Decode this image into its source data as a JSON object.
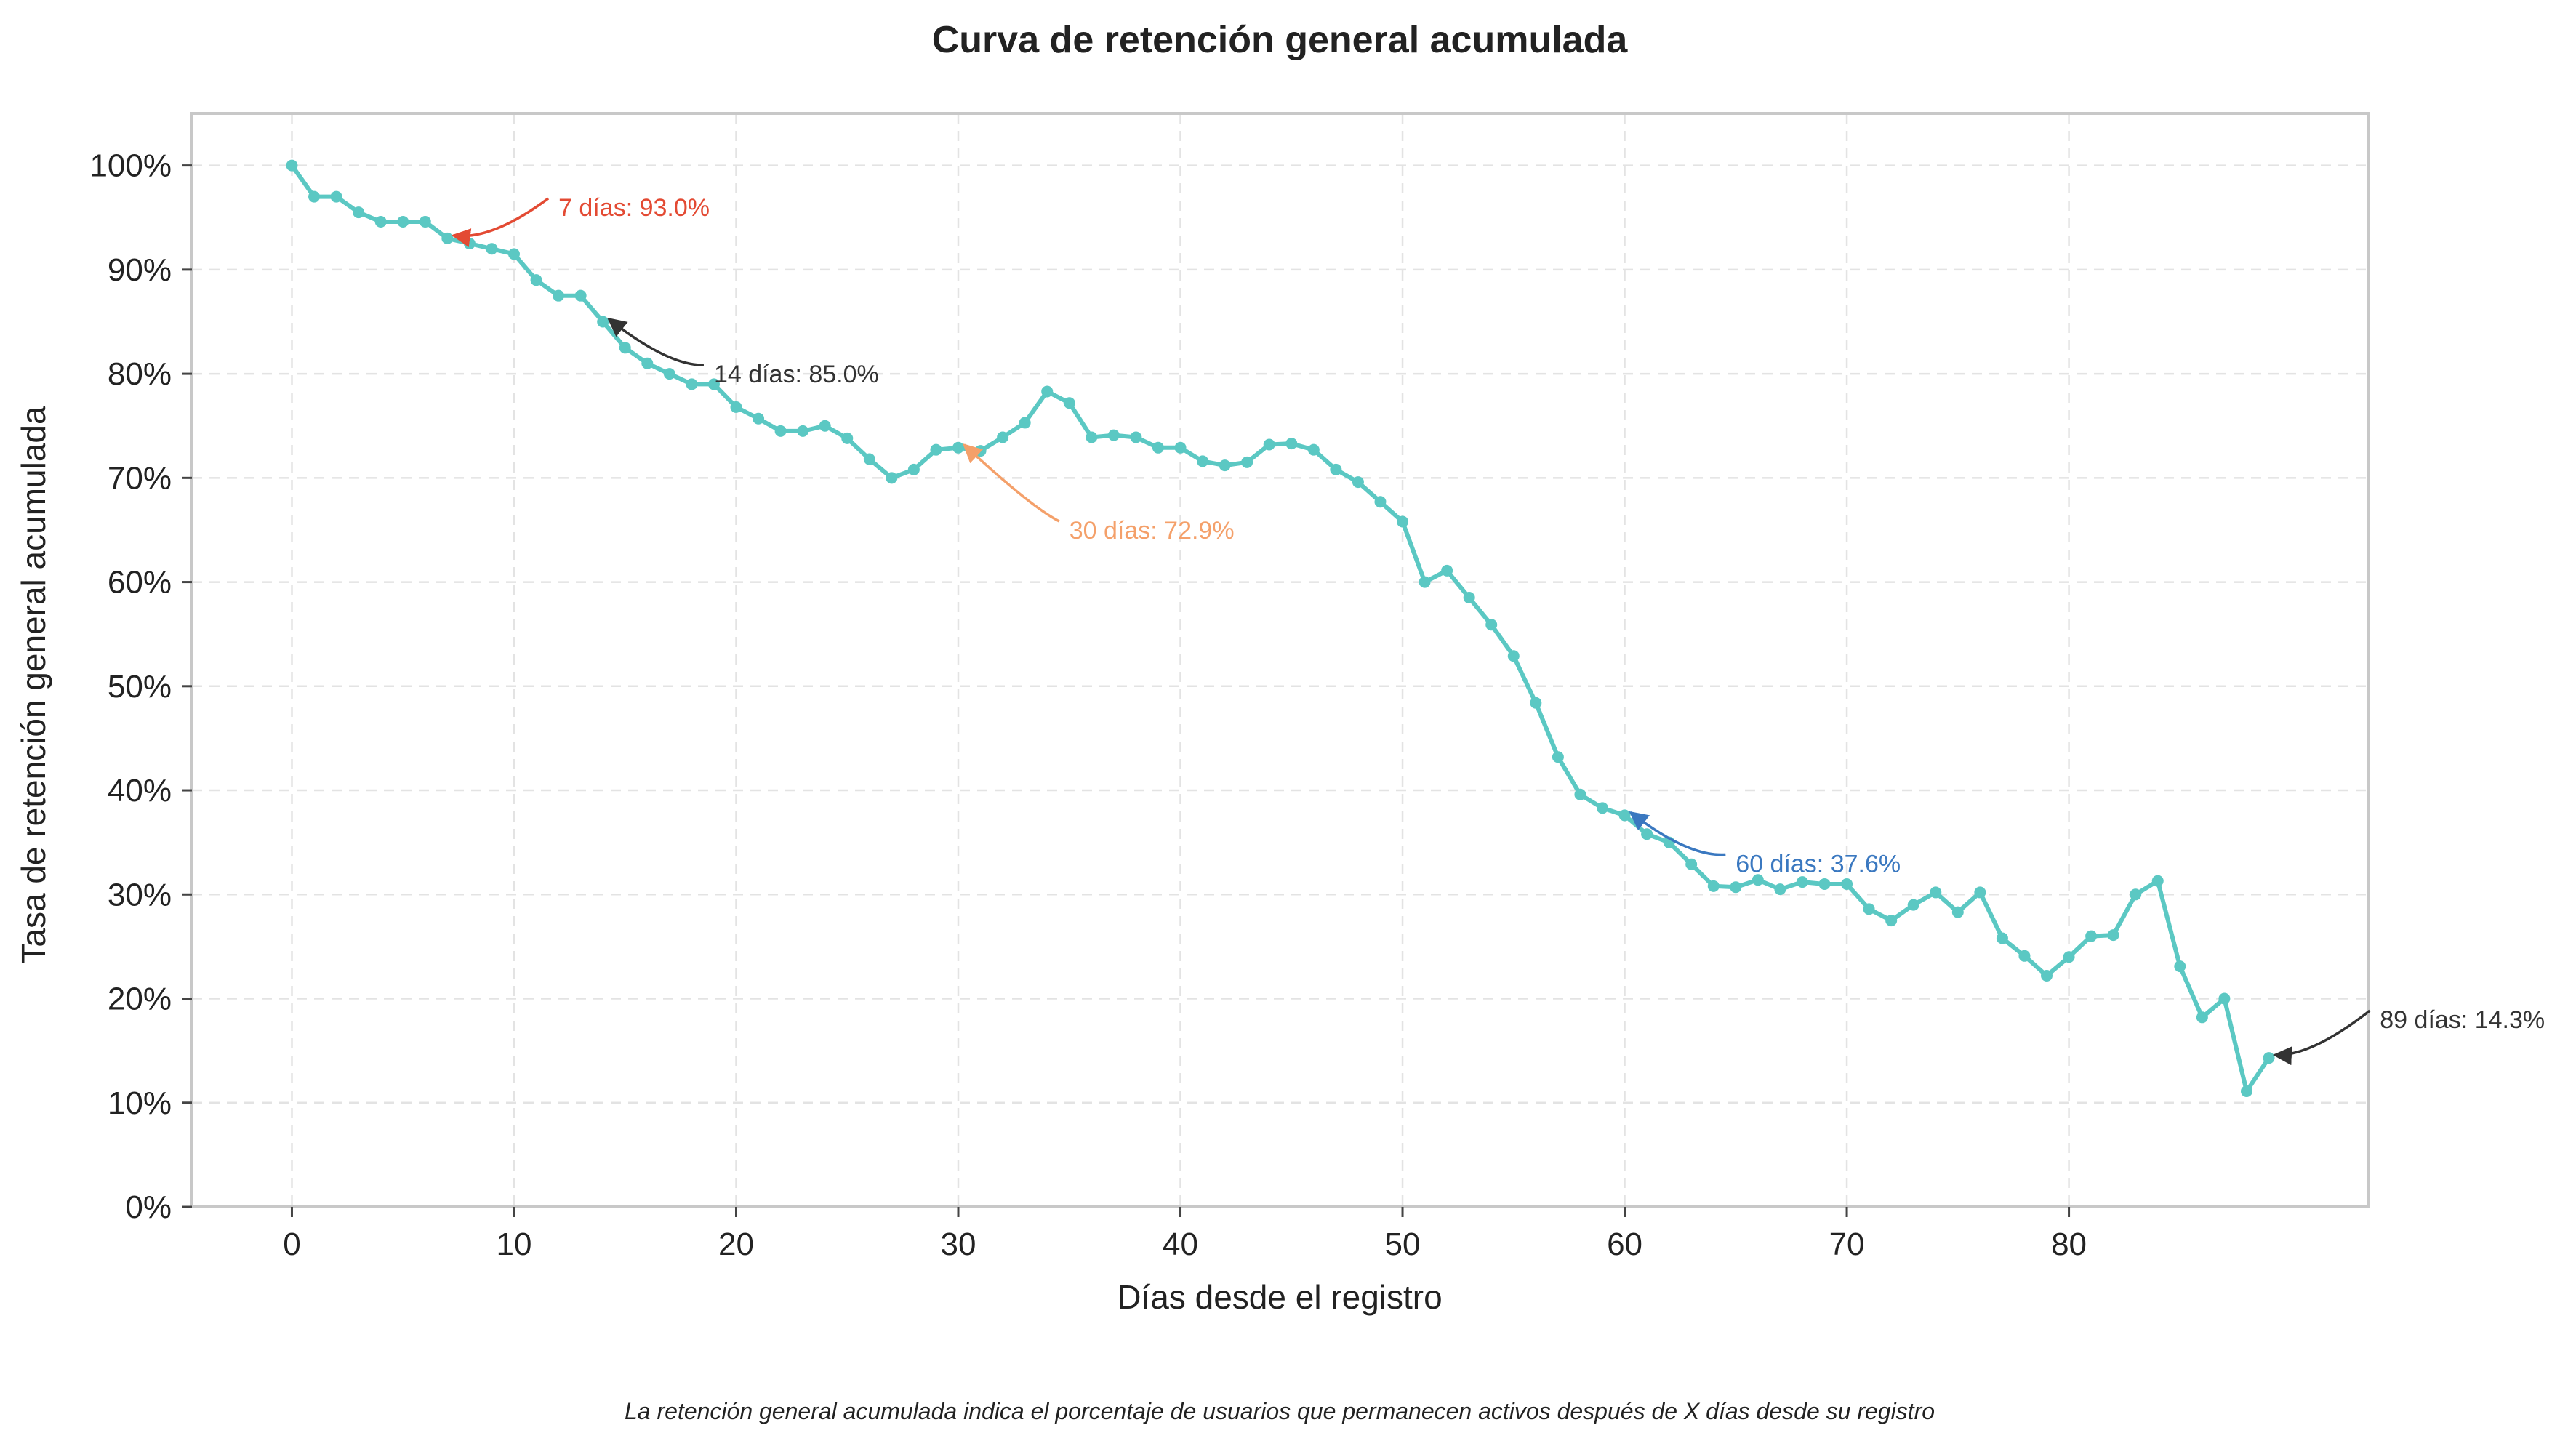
{
  "chart_data": {
    "type": "line",
    "title": "Curva de retención general acumulada",
    "xlabel": "Días desde el registro",
    "ylabel": "Tasa de retención general acumulada",
    "footnote": "La retención general acumulada indica el porcentaje de usuarios que permanecen activos después de X días desde su registro",
    "xlim": [
      -4.5,
      93.5
    ],
    "ylim": [
      0,
      1.05
    ],
    "x_ticks": [
      0,
      10,
      20,
      30,
      40,
      50,
      60,
      70,
      80
    ],
    "x_tick_labels": [
      "0",
      "10",
      "20",
      "30",
      "40",
      "50",
      "60",
      "70",
      "80"
    ],
    "y_ticks": [
      0,
      0.1,
      0.2,
      0.3,
      0.4,
      0.5,
      0.6,
      0.7,
      0.8,
      0.9,
      1.0
    ],
    "y_tick_labels": [
      "0%",
      "10%",
      "20%",
      "30%",
      "40%",
      "50%",
      "60%",
      "70%",
      "80%",
      "90%",
      "100%"
    ],
    "grid": true,
    "line_color": "#5bc8c3",
    "series": [
      {
        "x": [
          0,
          1,
          2,
          3,
          4,
          5,
          6,
          7,
          8,
          9,
          10,
          11,
          12,
          13,
          14,
          15,
          16,
          17,
          18,
          19,
          20,
          21,
          22,
          23,
          24,
          25,
          26,
          27,
          28,
          29,
          30,
          31,
          32,
          33,
          34,
          35,
          36,
          37,
          38,
          39,
          40,
          41,
          42,
          43,
          44,
          45,
          46,
          47,
          48,
          49,
          50,
          51,
          52,
          53,
          54,
          55,
          56,
          57,
          58,
          59,
          60,
          61,
          62,
          63,
          64,
          65,
          66,
          67,
          68,
          69,
          70,
          71,
          72,
          73,
          74,
          75,
          76,
          77,
          78,
          79,
          80,
          81,
          82,
          83,
          84,
          85,
          86,
          87,
          88,
          89
        ],
        "values": [
          1.0,
          0.97,
          0.97,
          0.955,
          0.946,
          0.946,
          0.946,
          0.93,
          0.925,
          0.92,
          0.915,
          0.89,
          0.875,
          0.875,
          0.85,
          0.825,
          0.81,
          0.8,
          0.79,
          0.79,
          0.768,
          0.757,
          0.745,
          0.745,
          0.75,
          0.738,
          0.718,
          0.7,
          0.708,
          0.727,
          0.729,
          0.726,
          0.739,
          0.753,
          0.783,
          0.772,
          0.739,
          0.741,
          0.739,
          0.729,
          0.729,
          0.716,
          0.712,
          0.715,
          0.732,
          0.733,
          0.727,
          0.708,
          0.696,
          0.677,
          0.658,
          0.6,
          0.611,
          0.585,
          0.559,
          0.529,
          0.484,
          0.432,
          0.396,
          0.383,
          0.376,
          0.358,
          0.35,
          0.329,
          0.308,
          0.307,
          0.314,
          0.305,
          0.312,
          0.31,
          0.31,
          0.286,
          0.275,
          0.29,
          0.302,
          0.283,
          0.302,
          0.258,
          0.241,
          0.222,
          0.24,
          0.26,
          0.261,
          0.3,
          0.313,
          0.231,
          0.182,
          0.2,
          0.111,
          0.143
        ]
      }
    ],
    "annotations": [
      {
        "label": "7 días: 93.0%",
        "x": 7,
        "y": 0.93,
        "text_x": 12,
        "text_y": 0.96,
        "color": "#e34a33"
      },
      {
        "label": "14 días: 85.0%",
        "x": 14,
        "y": 0.85,
        "text_x": 19,
        "text_y": 0.8,
        "color": "#333333"
      },
      {
        "label": "30 días: 72.9%",
        "x": 30,
        "y": 0.729,
        "text_x": 35,
        "text_y": 0.65,
        "color": "#f4a06a"
      },
      {
        "label": "60 días: 37.6%",
        "x": 60,
        "y": 0.376,
        "text_x": 65,
        "text_y": 0.33,
        "color": "#3a78c0"
      },
      {
        "label": "89 días: 14.3%",
        "x": 89,
        "y": 0.143,
        "text_x": 94,
        "text_y": 0.18,
        "color": "#333333"
      }
    ]
  }
}
